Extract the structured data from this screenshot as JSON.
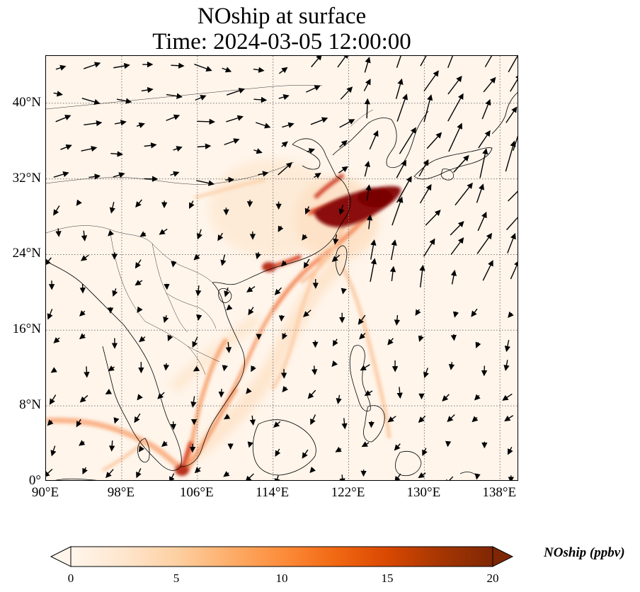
{
  "title": {
    "line1": "NOship at surface",
    "line2": "Time: 2024-03-05 12:00:00"
  },
  "map": {
    "lon_range": [
      90,
      140
    ],
    "lat_range": [
      0,
      45
    ],
    "x_ticks": [
      {
        "lon": 90,
        "label": "90°E"
      },
      {
        "lon": 98,
        "label": "98°E"
      },
      {
        "lon": 106,
        "label": "106°E"
      },
      {
        "lon": 114,
        "label": "114°E"
      },
      {
        "lon": 122,
        "label": "122°E"
      },
      {
        "lon": 130,
        "label": "130°E"
      },
      {
        "lon": 138,
        "label": "138°E"
      }
    ],
    "y_ticks": [
      {
        "lat": 0,
        "label": "0°"
      },
      {
        "lat": 8,
        "label": "8°N"
      },
      {
        "lat": 16,
        "label": "16°N"
      },
      {
        "lat": 24,
        "label": "24°N"
      },
      {
        "lat": 32,
        "label": "32°N"
      },
      {
        "lat": 40,
        "label": "40°N"
      }
    ],
    "gridlines": true,
    "background_color": "#fff5eb"
  },
  "colorbar": {
    "label": "NOship (ppbv)",
    "ticks": [
      {
        "value": 0,
        "label": "0"
      },
      {
        "value": 5,
        "label": "5"
      },
      {
        "value": 10,
        "label": "10"
      },
      {
        "value": 15,
        "label": "15"
      },
      {
        "value": 20,
        "label": "20"
      }
    ],
    "range": [
      0,
      20
    ],
    "colormap": [
      "#fff5eb",
      "#fee6ce",
      "#fdd0a2",
      "#fdae6b",
      "#fd8d3c",
      "#f16913",
      "#d94801",
      "#a63603",
      "#7f2704"
    ]
  }
}
